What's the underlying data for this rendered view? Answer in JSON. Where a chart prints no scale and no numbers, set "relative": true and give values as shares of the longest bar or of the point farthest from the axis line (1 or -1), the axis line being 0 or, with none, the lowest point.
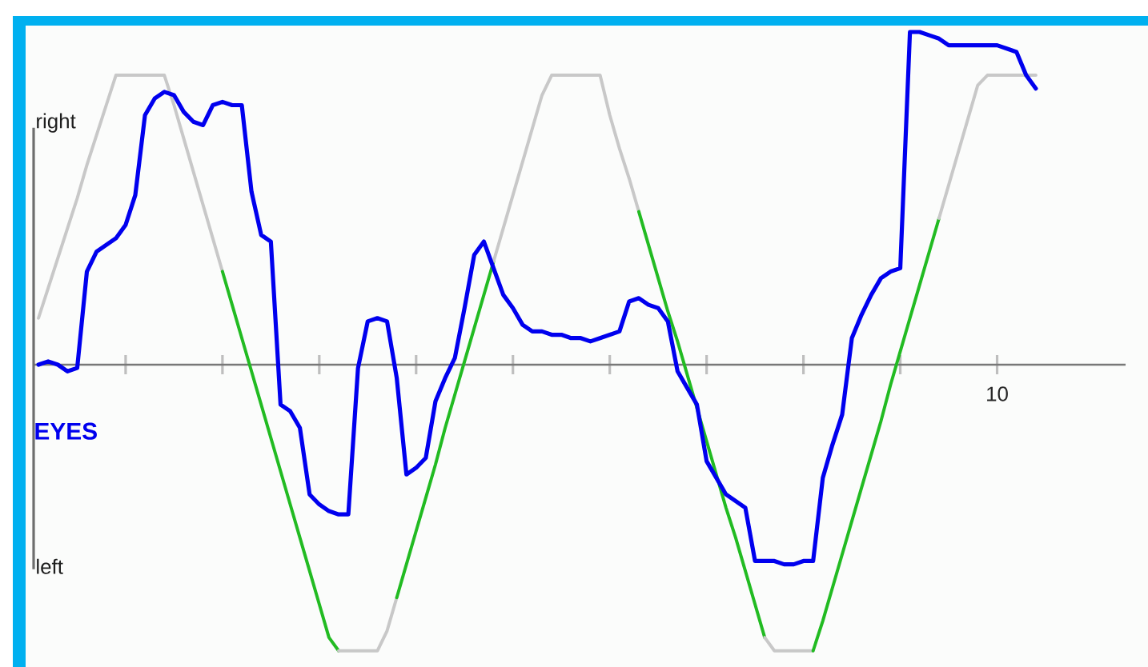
{
  "chart_data": {
    "type": "line",
    "relative": true,
    "categories": [
      null,
      null,
      null,
      null,
      null,
      null,
      null,
      null,
      null,
      null,
      null,
      null,
      null,
      null,
      null,
      null,
      null,
      null,
      null,
      null,
      null,
      null,
      null,
      null,
      null,
      null,
      null,
      null,
      null,
      null,
      null,
      null,
      null,
      null,
      null,
      null,
      null,
      null,
      null,
      null,
      null,
      null,
      null,
      null,
      null,
      null,
      null,
      null,
      null,
      null,
      null,
      null,
      null,
      null,
      null,
      null,
      null,
      null,
      null,
      null,
      null,
      null,
      null,
      null,
      null,
      null,
      null,
      null,
      null,
      null,
      null,
      null,
      null,
      null,
      null,
      null,
      null,
      null,
      null,
      null,
      null,
      null,
      null,
      null,
      null,
      null,
      null,
      null,
      null,
      null,
      null,
      null,
      null,
      null,
      null,
      null,
      null,
      null,
      null,
      null,
      null,
      null,
      null,
      null
    ],
    "annotations": [
      "right",
      "left",
      "10"
    ],
    "marker": "none",
    "line_style": "solid",
    "series": [
      {
        "color": "#c8c8c8",
        "values": [
          0.14,
          0.23,
          0.32,
          0.41,
          0.5,
          0.6,
          0.69,
          0.78,
          0.87,
          0.87,
          0.87,
          0.87,
          0.87,
          0.87,
          0.78,
          0.68,
          0.58,
          0.48,
          0.38,
          0.28,
          null,
          null,
          null,
          null,
          null,
          null,
          null,
          null,
          null,
          null,
          null,
          null,
          null,
          null,
          null,
          null,
          null,
          null,
          null,
          null,
          null,
          null,
          null,
          null,
          null,
          null,
          null,
          null,
          null,
          null,
          null,
          null,
          null,
          null,
          null,
          null,
          null,
          null,
          null,
          null,
          null,
          null,
          null,
          null,
          null,
          null,
          null,
          null,
          null,
          null,
          null,
          null,
          null,
          null,
          null,
          null,
          null,
          null,
          null,
          null,
          null,
          null,
          null,
          null,
          null,
          null,
          null,
          null,
          null,
          null,
          null,
          null,
          null,
          null,
          null,
          null,
          null,
          null,
          null,
          null,
          null,
          null,
          null,
          null
        ]
      },
      {
        "color": "#22bb22",
        "values": [
          null,
          null,
          null,
          null,
          null,
          null,
          null,
          null,
          null,
          null,
          null,
          null,
          null,
          null,
          null,
          null,
          null,
          null,
          null,
          0.28,
          0.18,
          0.08,
          -0.02,
          -0.12,
          -0.22,
          -0.32,
          -0.42,
          -0.52,
          -0.62,
          -0.72,
          -0.82,
          -0.86,
          null,
          null,
          null,
          null,
          null,
          null,
          null,
          null,
          null,
          null,
          null,
          null,
          null,
          null,
          null,
          null,
          null,
          null,
          null,
          null,
          null,
          null,
          null,
          null,
          null,
          null,
          null,
          null,
          null,
          null,
          null,
          null,
          null,
          null,
          null,
          null,
          null,
          null,
          null,
          null,
          null,
          null,
          null,
          null,
          null,
          null,
          null,
          null,
          null,
          null,
          null,
          null,
          null,
          null,
          null,
          null,
          null,
          null,
          null,
          null,
          null,
          null,
          null,
          null,
          null,
          null,
          null,
          null,
          null,
          null,
          null,
          null
        ]
      },
      {
        "color": "#c8c8c8",
        "values": [
          null,
          null,
          null,
          null,
          null,
          null,
          null,
          null,
          null,
          null,
          null,
          null,
          null,
          null,
          null,
          null,
          null,
          null,
          null,
          null,
          null,
          null,
          null,
          null,
          null,
          null,
          null,
          null,
          null,
          null,
          null,
          -0.86,
          -0.86,
          -0.86,
          -0.86,
          -0.86,
          -0.8,
          -0.7,
          null,
          null,
          null,
          null,
          null,
          null,
          null,
          null,
          null,
          null,
          null,
          null,
          null,
          null,
          null,
          null,
          null,
          null,
          null,
          null,
          null,
          null,
          null,
          null,
          null,
          null,
          null,
          null,
          null,
          null,
          null,
          null,
          null,
          null,
          null,
          null,
          null,
          null,
          null,
          null,
          null,
          null,
          null,
          null,
          null,
          null,
          null,
          null,
          null,
          null,
          null,
          null,
          null,
          null,
          null,
          null,
          null,
          null,
          null,
          null,
          null,
          null,
          null,
          null,
          null,
          null
        ]
      },
      {
        "color": "#22bb22",
        "values": [
          null,
          null,
          null,
          null,
          null,
          null,
          null,
          null,
          null,
          null,
          null,
          null,
          null,
          null,
          null,
          null,
          null,
          null,
          null,
          null,
          null,
          null,
          null,
          null,
          null,
          null,
          null,
          null,
          null,
          null,
          null,
          null,
          null,
          null,
          null,
          null,
          null,
          -0.7,
          -0.6,
          -0.5,
          -0.4,
          -0.3,
          -0.19,
          -0.09,
          0.01,
          0.11,
          0.21,
          0.31,
          null,
          null,
          null,
          null,
          null,
          null,
          null,
          null,
          null,
          null,
          null,
          null,
          null,
          null,
          null,
          null,
          null,
          null,
          null,
          null,
          null,
          null,
          null,
          null,
          null,
          null,
          null,
          null,
          null,
          null,
          null,
          null,
          null,
          null,
          null,
          null,
          null,
          null,
          null,
          null,
          null,
          null,
          null,
          null,
          null,
          null,
          null,
          null,
          null,
          null,
          null,
          null,
          null,
          null,
          null,
          null
        ]
      },
      {
        "color": "#c8c8c8",
        "values": [
          null,
          null,
          null,
          null,
          null,
          null,
          null,
          null,
          null,
          null,
          null,
          null,
          null,
          null,
          null,
          null,
          null,
          null,
          null,
          null,
          null,
          null,
          null,
          null,
          null,
          null,
          null,
          null,
          null,
          null,
          null,
          null,
          null,
          null,
          null,
          null,
          null,
          null,
          null,
          null,
          null,
          null,
          null,
          null,
          null,
          null,
          null,
          0.31,
          0.41,
          0.51,
          0.61,
          0.71,
          0.81,
          0.87,
          0.87,
          0.87,
          0.87,
          0.87,
          0.87,
          0.75,
          0.65,
          0.56,
          0.46,
          null,
          null,
          null,
          null,
          null,
          null,
          null,
          null,
          null,
          null,
          null,
          null,
          null,
          null,
          null,
          null,
          null,
          null,
          null,
          null,
          null,
          null,
          null,
          null,
          null,
          null,
          null,
          null,
          null,
          null,
          null,
          null,
          null,
          null,
          null,
          null,
          null,
          null,
          null,
          null,
          null
        ]
      },
      {
        "color": "#22bb22",
        "values": [
          null,
          null,
          null,
          null,
          null,
          null,
          null,
          null,
          null,
          null,
          null,
          null,
          null,
          null,
          null,
          null,
          null,
          null,
          null,
          null,
          null,
          null,
          null,
          null,
          null,
          null,
          null,
          null,
          null,
          null,
          null,
          null,
          null,
          null,
          null,
          null,
          null,
          null,
          null,
          null,
          null,
          null,
          null,
          null,
          null,
          null,
          null,
          null,
          null,
          null,
          null,
          null,
          null,
          null,
          null,
          null,
          null,
          null,
          null,
          null,
          null,
          null,
          0.46,
          0.36,
          0.26,
          0.16,
          0.07,
          -0.03,
          -0.13,
          -0.23,
          -0.33,
          -0.43,
          -0.52,
          -0.62,
          -0.72,
          -0.82,
          null,
          null,
          null,
          null,
          null,
          null,
          null,
          null,
          null,
          null,
          null,
          null,
          null,
          null,
          null,
          null,
          null,
          null,
          null,
          null,
          null,
          null,
          null,
          null,
          null,
          null,
          null,
          null
        ]
      },
      {
        "color": "#c8c8c8",
        "values": [
          null,
          null,
          null,
          null,
          null,
          null,
          null,
          null,
          null,
          null,
          null,
          null,
          null,
          null,
          null,
          null,
          null,
          null,
          null,
          null,
          null,
          null,
          null,
          null,
          null,
          null,
          null,
          null,
          null,
          null,
          null,
          null,
          null,
          null,
          null,
          null,
          null,
          null,
          null,
          null,
          null,
          null,
          null,
          null,
          null,
          null,
          null,
          null,
          null,
          null,
          null,
          null,
          null,
          null,
          null,
          null,
          null,
          null,
          null,
          null,
          null,
          null,
          null,
          null,
          null,
          null,
          null,
          null,
          null,
          null,
          null,
          null,
          null,
          null,
          null,
          -0.82,
          -0.86,
          -0.86,
          -0.86,
          -0.86,
          -0.86,
          null,
          null,
          null,
          null,
          null,
          null,
          null,
          null,
          null,
          null,
          null,
          null,
          null,
          null,
          null,
          null,
          null,
          null,
          null,
          null,
          null,
          null,
          null
        ]
      },
      {
        "color": "#22bb22",
        "values": [
          null,
          null,
          null,
          null,
          null,
          null,
          null,
          null,
          null,
          null,
          null,
          null,
          null,
          null,
          null,
          null,
          null,
          null,
          null,
          null,
          null,
          null,
          null,
          null,
          null,
          null,
          null,
          null,
          null,
          null,
          null,
          null,
          null,
          null,
          null,
          null,
          null,
          null,
          null,
          null,
          null,
          null,
          null,
          null,
          null,
          null,
          null,
          null,
          null,
          null,
          null,
          null,
          null,
          null,
          null,
          null,
          null,
          null,
          null,
          null,
          null,
          null,
          null,
          null,
          null,
          null,
          null,
          null,
          null,
          null,
          null,
          null,
          null,
          null,
          null,
          null,
          null,
          null,
          null,
          null,
          -0.86,
          -0.77,
          -0.67,
          -0.57,
          -0.47,
          -0.37,
          -0.27,
          -0.17,
          -0.06,
          0.04,
          0.14,
          0.24,
          0.34,
          0.44,
          null,
          null,
          null,
          null,
          null,
          null,
          null,
          null,
          null,
          null
        ]
      },
      {
        "color": "#c8c8c8",
        "values": [
          null,
          null,
          null,
          null,
          null,
          null,
          null,
          null,
          null,
          null,
          null,
          null,
          null,
          null,
          null,
          null,
          null,
          null,
          null,
          null,
          null,
          null,
          null,
          null,
          null,
          null,
          null,
          null,
          null,
          null,
          null,
          null,
          null,
          null,
          null,
          null,
          null,
          null,
          null,
          null,
          null,
          null,
          null,
          null,
          null,
          null,
          null,
          null,
          null,
          null,
          null,
          null,
          null,
          null,
          null,
          null,
          null,
          null,
          null,
          null,
          null,
          null,
          null,
          null,
          null,
          null,
          null,
          null,
          null,
          null,
          null,
          null,
          null,
          null,
          null,
          null,
          null,
          null,
          null,
          null,
          null,
          null,
          null,
          null,
          null,
          null,
          null,
          null,
          null,
          null,
          null,
          null,
          null,
          0.44,
          0.54,
          0.64,
          0.74,
          0.84,
          0.87,
          0.87,
          0.87,
          0.87,
          0.87,
          0.87
        ]
      },
      {
        "name": "EYES",
        "color": "#0000ee",
        "values": [
          0.0,
          0.01,
          0.0,
          -0.02,
          -0.01,
          0.28,
          0.34,
          0.36,
          0.38,
          0.42,
          0.51,
          0.75,
          0.8,
          0.82,
          0.81,
          0.76,
          0.73,
          0.72,
          0.78,
          0.79,
          0.78,
          0.78,
          0.52,
          0.39,
          0.37,
          -0.12,
          -0.14,
          -0.19,
          -0.39,
          -0.42,
          -0.44,
          -0.45,
          -0.45,
          -0.01,
          0.13,
          0.14,
          0.13,
          -0.04,
          -0.33,
          -0.31,
          -0.28,
          -0.11,
          -0.04,
          0.02,
          0.17,
          0.33,
          0.37,
          0.29,
          0.21,
          0.17,
          0.12,
          0.1,
          0.1,
          0.09,
          0.09,
          0.08,
          0.08,
          0.07,
          0.08,
          0.09,
          0.1,
          0.19,
          0.2,
          0.18,
          0.17,
          0.13,
          -0.02,
          -0.07,
          -0.12,
          -0.29,
          -0.34,
          -0.39,
          -0.41,
          -0.43,
          -0.59,
          -0.59,
          -0.59,
          -0.6,
          -0.6,
          -0.59,
          -0.59,
          -0.34,
          -0.24,
          -0.15,
          0.08,
          0.15,
          0.21,
          0.26,
          0.28,
          0.29,
          1.0,
          1.0,
          0.99,
          0.98,
          0.96,
          0.96,
          0.96,
          0.96,
          0.96,
          0.96,
          0.95,
          0.94,
          0.87,
          0.83
        ]
      }
    ]
  }
}
